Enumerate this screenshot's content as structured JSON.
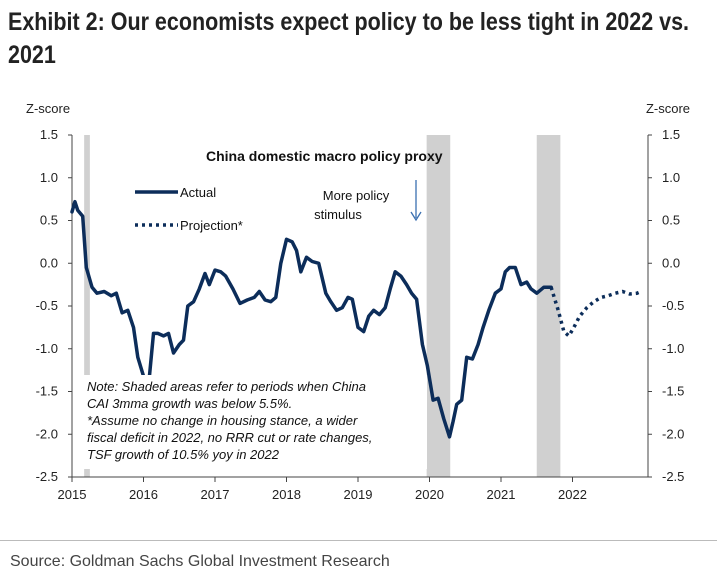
{
  "header": {
    "title": "Exhibit 2: Our economists expect policy to be less tight in 2022 vs. 2021"
  },
  "footer": {
    "source": "Source: Goldman Sachs Global Investment Research"
  },
  "colors": {
    "series": "#0c2d5a",
    "shade": "#d0d0d0"
  },
  "chart_data": {
    "type": "line",
    "title": "China domestic macro policy proxy",
    "left_axis_label": "Z-score",
    "right_axis_label": "Z-score",
    "ylim": [
      -2.5,
      1.5
    ],
    "y_ticks": [
      1.5,
      1.0,
      0.5,
      0.0,
      -0.5,
      -1.0,
      -1.5,
      -2.0,
      -2.5
    ],
    "y_tick_labels": [
      "1.5",
      "1.0",
      "0.5",
      "0.0",
      "-0.5",
      "-1.0",
      "-1.5",
      "-2.0",
      "-2.5"
    ],
    "xlim": [
      2015.0,
      2023.0
    ],
    "x_ticks": [
      2015,
      2016,
      2017,
      2018,
      2019,
      2020,
      2021,
      2022
    ],
    "x_tick_labels": [
      "2015",
      "2016",
      "2017",
      "2018",
      "2019",
      "2020",
      "2021",
      "2022"
    ],
    "shaded_periods": [
      [
        2015.17,
        2015.25
      ],
      [
        2019.96,
        2020.29
      ],
      [
        2021.5,
        2021.83
      ]
    ],
    "annotation": {
      "text_lines": [
        "More policy",
        "stimulus"
      ],
      "arrow": "down"
    },
    "note_lines": [
      "Note: Shaded areas refer to periods when China",
      "CAI 3mma growth was below 5.5%.",
      "*Assume no change in housing stance, a wider",
      "fiscal deficit in 2022, no RRR cut or rate changes,",
      "TSF growth of 10.5% yoy in 2022"
    ],
    "legend": [
      {
        "name": "Actual",
        "style": "solid"
      },
      {
        "name": "Projection*",
        "style": "dotted"
      }
    ],
    "series": [
      {
        "name": "Actual",
        "style": "solid",
        "x": [
          2015.0,
          2015.04,
          2015.08,
          2015.15,
          2015.2,
          2015.28,
          2015.35,
          2015.45,
          2015.55,
          2015.62,
          2015.7,
          2015.78,
          2015.86,
          2015.92,
          2016.0,
          2016.08,
          2016.14,
          2016.2,
          2016.28,
          2016.35,
          2016.42,
          2016.5,
          2016.56,
          2016.62,
          2016.7,
          2016.78,
          2016.86,
          2016.92,
          2017.0,
          2017.08,
          2017.15,
          2017.25,
          2017.35,
          2017.45,
          2017.55,
          2017.62,
          2017.7,
          2017.78,
          2017.85,
          2017.92,
          2018.0,
          2018.08,
          2018.14,
          2018.2,
          2018.28,
          2018.36,
          2018.45,
          2018.55,
          2018.62,
          2018.7,
          2018.78,
          2018.86,
          2018.92,
          2019.0,
          2019.08,
          2019.15,
          2019.22,
          2019.3,
          2019.38,
          2019.45,
          2019.52,
          2019.6,
          2019.68,
          2019.75,
          2019.82,
          2019.9,
          2019.97,
          2020.05,
          2020.12,
          2020.2,
          2020.28,
          2020.33,
          2020.38,
          2020.45,
          2020.52,
          2020.6,
          2020.68,
          2020.75,
          2020.83,
          2020.92,
          2021.0,
          2021.06,
          2021.12,
          2021.2,
          2021.28,
          2021.36,
          2021.42,
          2021.5,
          2021.6,
          2021.7
        ],
        "values": [
          0.6,
          0.72,
          0.62,
          0.55,
          -0.05,
          -0.28,
          -0.35,
          -0.33,
          -0.38,
          -0.35,
          -0.58,
          -0.55,
          -0.75,
          -1.1,
          -1.32,
          -1.35,
          -0.82,
          -0.82,
          -0.85,
          -0.82,
          -1.05,
          -0.95,
          -0.9,
          -0.5,
          -0.45,
          -0.3,
          -0.12,
          -0.25,
          -0.08,
          -0.1,
          -0.15,
          -0.3,
          -0.47,
          -0.43,
          -0.4,
          -0.33,
          -0.43,
          -0.45,
          -0.4,
          0.0,
          0.28,
          0.25,
          0.15,
          -0.1,
          0.07,
          0.02,
          0.0,
          -0.35,
          -0.45,
          -0.55,
          -0.52,
          -0.4,
          -0.42,
          -0.75,
          -0.8,
          -0.62,
          -0.55,
          -0.6,
          -0.52,
          -0.3,
          -0.1,
          -0.15,
          -0.25,
          -0.35,
          -0.42,
          -0.95,
          -1.2,
          -1.6,
          -1.58,
          -1.82,
          -2.03,
          -1.85,
          -1.65,
          -1.6,
          -1.1,
          -1.12,
          -0.95,
          -0.75,
          -0.55,
          -0.35,
          -0.3,
          -0.1,
          -0.05,
          -0.05,
          -0.25,
          -0.22,
          -0.3,
          -0.35,
          -0.28,
          -0.28
        ]
      },
      {
        "name": "Projection*",
        "style": "dotted",
        "x": [
          2021.7,
          2021.8,
          2021.88,
          2021.95,
          2022.02,
          2022.1,
          2022.2,
          2022.3,
          2022.4,
          2022.5,
          2022.6,
          2022.7,
          2022.8,
          2022.9,
          2022.96
        ],
        "values": [
          -0.28,
          -0.55,
          -0.8,
          -0.85,
          -0.75,
          -0.62,
          -0.52,
          -0.45,
          -0.4,
          -0.38,
          -0.35,
          -0.33,
          -0.36,
          -0.35,
          -0.33
        ]
      }
    ]
  }
}
